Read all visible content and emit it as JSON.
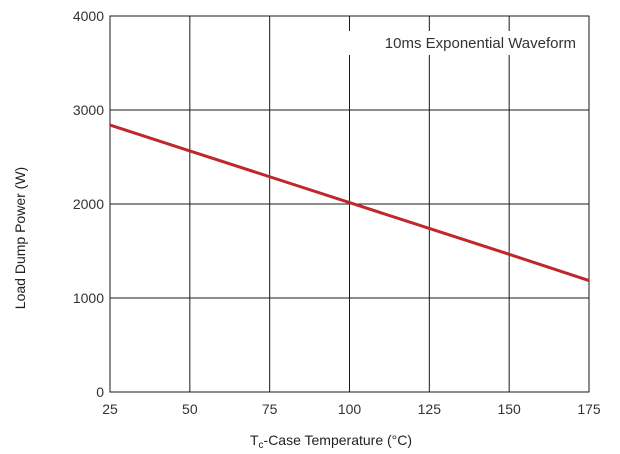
{
  "chart_data": {
    "type": "line",
    "title": "",
    "xlabel": "T",
    "xlabel_sub": "c",
    "xlabel_rest": "-Case Temperature (°C)",
    "ylabel": "Load Dump Power (W)",
    "xlim": [
      25,
      175
    ],
    "ylim": [
      0,
      4000
    ],
    "xticks": [
      25,
      50,
      75,
      100,
      125,
      150,
      175
    ],
    "yticks": [
      0,
      1000,
      2000,
      3000,
      4000
    ],
    "grid": true,
    "annotation": "10ms Exponential Waveform",
    "series": [
      {
        "x": [
          25,
          50,
          75,
          100,
          125,
          150,
          175
        ],
        "y": [
          2840,
          2565,
          2290,
          2015,
          1740,
          1465,
          1185
        ]
      }
    ],
    "colors": {
      "line": "#c0272d",
      "grid": "#1a1a1a",
      "frame": "#1a1a1a"
    }
  }
}
